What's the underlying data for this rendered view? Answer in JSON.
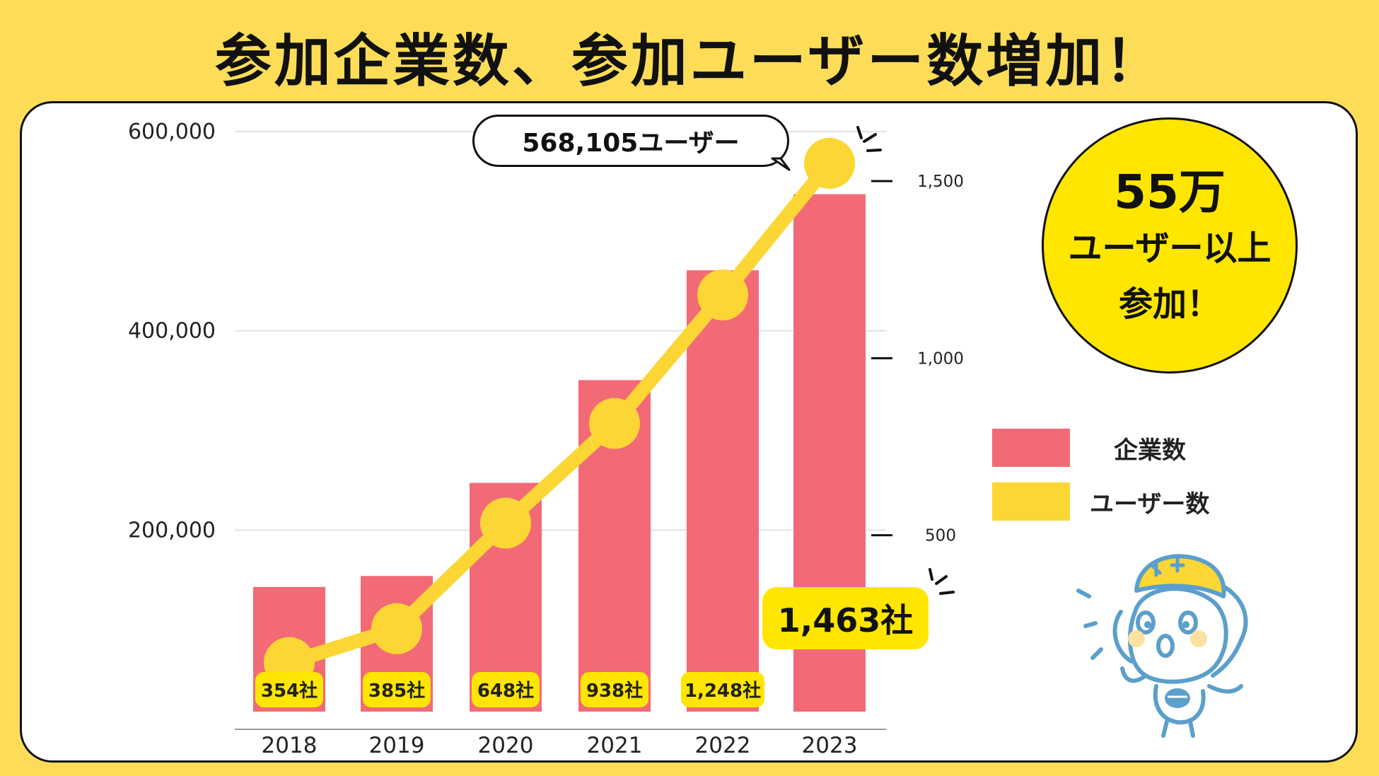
{
  "headline": "参加企業数、参加ユーザー数増加！",
  "badge": {
    "line1": "55万",
    "line2": "ユーザー以上",
    "line3": "参加！"
  },
  "legend": [
    {
      "label": "企業数",
      "color": "#F26A75"
    },
    {
      "label": "ユーザー数",
      "color": "#FCD634"
    }
  ],
  "callouts": {
    "users": "568,105ユーザー",
    "companies": "1,463社"
  },
  "chart_data": {
    "type": "bar+line",
    "title": "参加企業数、参加ユーザー数増加！",
    "categories": [
      "2018",
      "2019",
      "2020",
      "2021",
      "2022",
      "2023"
    ],
    "left_axis": {
      "ticks": [
        "200,000",
        "400,000",
        "600,000"
      ],
      "ylim": [
        0,
        600000
      ],
      "tick_values": [
        200000,
        400000,
        600000
      ]
    },
    "right_axis": {
      "ticks": [
        "500",
        "1,000",
        "1,500"
      ],
      "tick_values": [
        500,
        1000,
        1500
      ]
    },
    "series": [
      {
        "name": "企業数",
        "type": "bar",
        "axis": "right",
        "color": "#F26A75",
        "values": [
          354,
          385,
          648,
          938,
          1248,
          1463
        ],
        "labels": [
          "354社",
          "385社",
          "648社",
          "938社",
          "1,248社",
          ""
        ]
      },
      {
        "name": "ユーザー数",
        "type": "line",
        "axis": "left",
        "color": "#FCD634",
        "values": [
          67000,
          101000,
          207000,
          307000,
          436000,
          568105
        ]
      }
    ],
    "grid": true,
    "legend": "right"
  }
}
